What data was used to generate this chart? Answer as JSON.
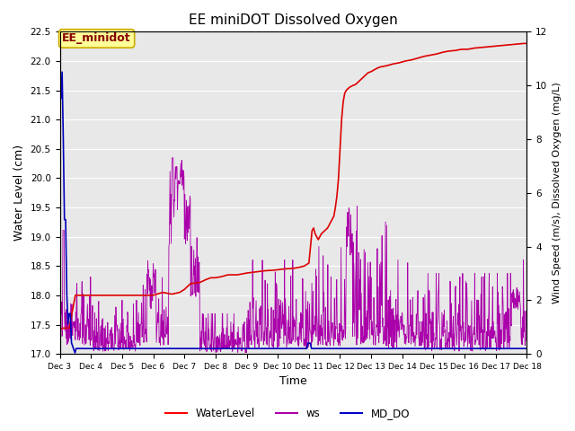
{
  "title": "EE miniDOT Dissolved Oxygen",
  "xlabel": "Time",
  "ylabel_left": "Water Level (cm)",
  "ylabel_right": "Wind Speed (m/s), Dissolved Oxygen (mg/L)",
  "ylim_left": [
    17.0,
    22.5
  ],
  "ylim_right": [
    0,
    12
  ],
  "yticks_left": [
    17.0,
    17.5,
    18.0,
    18.5,
    19.0,
    19.5,
    20.0,
    20.5,
    21.0,
    21.5,
    22.0,
    22.5
  ],
  "yticks_right": [
    0,
    2,
    4,
    6,
    8,
    10,
    12
  ],
  "xtick_labels": [
    "Dec 3",
    "Dec 4",
    "Dec 5",
    "Dec 6",
    "Dec 7",
    "Dec 8",
    "Dec 9",
    "Dec 10",
    "Dec 11",
    "Dec 12",
    "Dec 13",
    "Dec 14",
    "Dec 15",
    "Dec 16",
    "Dec 17",
    "Dec 18"
  ],
  "legend_labels": [
    "WaterLevel",
    "ws",
    "MD_DO"
  ],
  "legend_colors": [
    "#ff0000",
    "#aa00aa",
    "#0000cc"
  ],
  "annotation_text": "EE_minidot",
  "annotation_box_facecolor": "#ffff99",
  "annotation_box_edgecolor": "#ccaa00",
  "bg_color": "#e8e8e8",
  "grid_color": "#ffffff",
  "wl_color": "#dd0000",
  "ws_color": "#aa00aa",
  "do_color": "#0000bb",
  "xlim": [
    3,
    18
  ]
}
